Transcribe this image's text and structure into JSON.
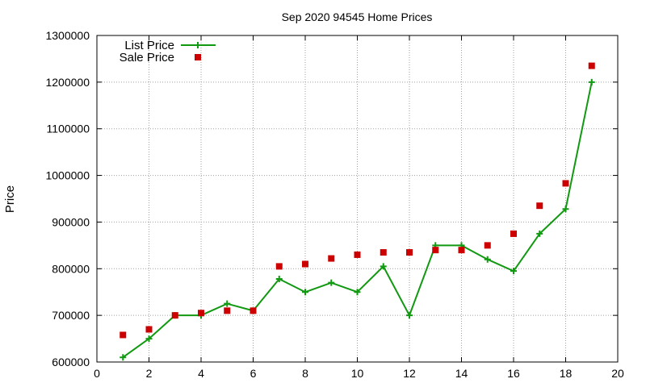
{
  "chart_data": {
    "type": "line",
    "title": "Sep 2020 94545 Home Prices",
    "xlabel": "",
    "ylabel": "Price",
    "xlim": [
      0,
      20
    ],
    "ylim": [
      600000,
      1300000
    ],
    "x_ticks": [
      0,
      2,
      4,
      6,
      8,
      10,
      12,
      14,
      16,
      18,
      20
    ],
    "y_ticks": [
      600000,
      700000,
      800000,
      900000,
      1000000,
      1100000,
      1200000,
      1300000
    ],
    "grid": true,
    "legend_position": "top-left",
    "series": [
      {
        "name": "List Price",
        "style": "line-with-plus-markers",
        "color": "#119911",
        "x": [
          1,
          2,
          3,
          4,
          5,
          6,
          7,
          8,
          9,
          10,
          11,
          12,
          13,
          14,
          15,
          16,
          17,
          18,
          19
        ],
        "values": [
          610000,
          650000,
          700000,
          700000,
          725000,
          710000,
          778000,
          750000,
          770000,
          750000,
          805000,
          700000,
          850000,
          850000,
          820000,
          795000,
          875000,
          928000,
          1200000
        ]
      },
      {
        "name": "Sale Price",
        "style": "square-markers",
        "color": "#cc0000",
        "x": [
          1,
          2,
          3,
          4,
          5,
          6,
          7,
          8,
          9,
          10,
          11,
          12,
          13,
          14,
          15,
          16,
          17,
          18,
          19
        ],
        "values": [
          658000,
          670000,
          700000,
          705000,
          710000,
          710000,
          805000,
          810000,
          822000,
          830000,
          835000,
          835000,
          840000,
          840000,
          850000,
          875000,
          935000,
          983000,
          1235000
        ]
      }
    ]
  }
}
